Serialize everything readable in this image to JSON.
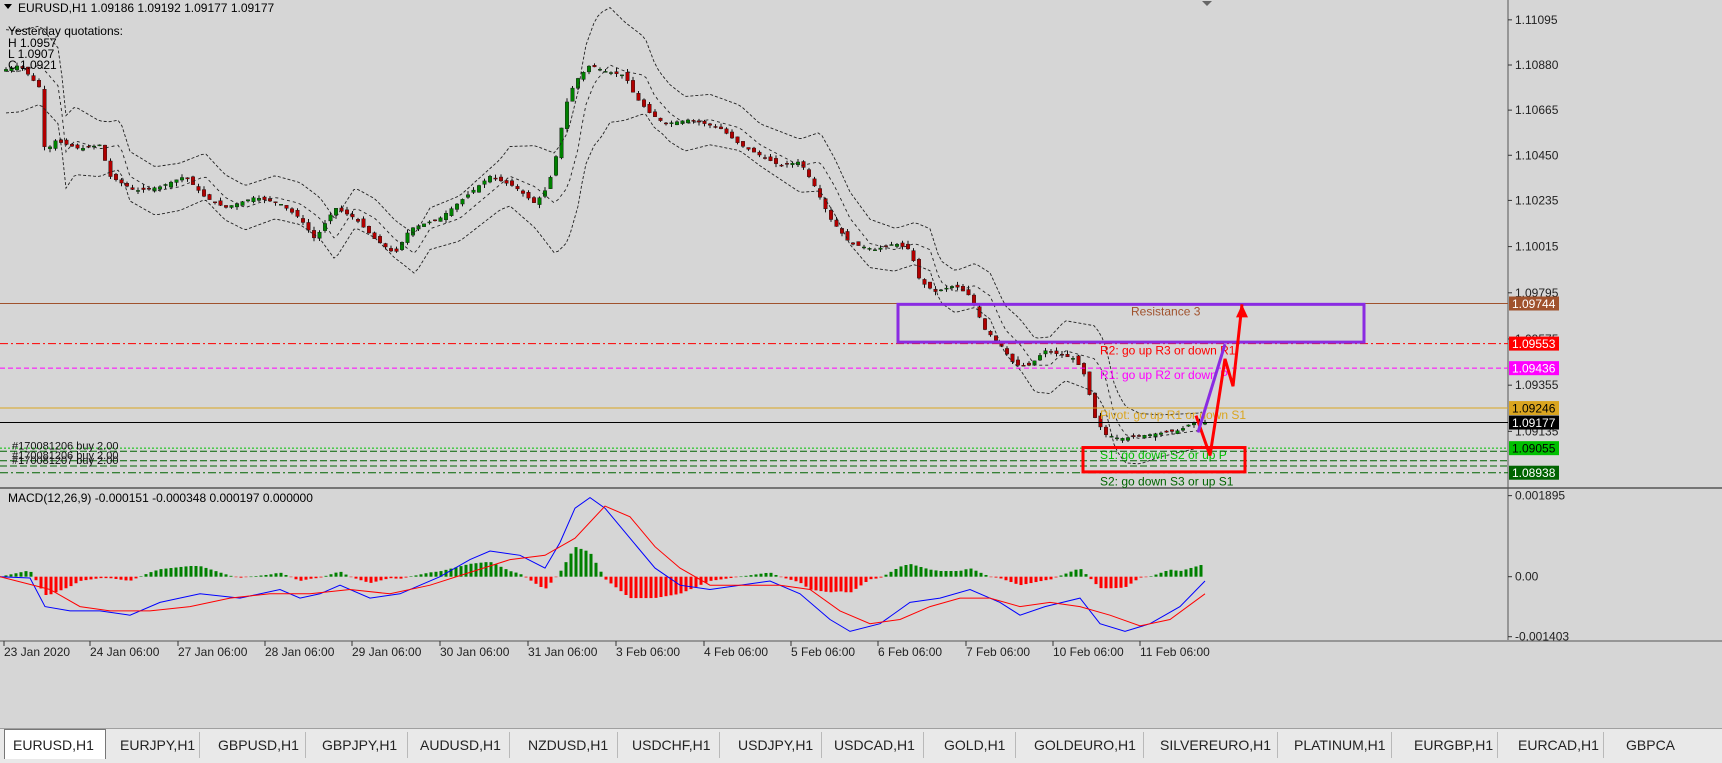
{
  "header": {
    "arrow": "▼",
    "text": "EURUSD,H1  1.09186 1.09192 1.09177 1.09177"
  },
  "quotations": {
    "title": "Yesterday quotations:",
    "lines": [
      "H 1.0957",
      "L 1.0907",
      "C 1.0921"
    ]
  },
  "colors": {
    "bg": "#d6d6d6",
    "bull": "#008000",
    "bear": "#b00000",
    "wick": "#111111",
    "band": "#222222",
    "macd_line": "#0000ff",
    "signal_line": "#ff0000",
    "hist_pos": "#008000",
    "hist_neg": "#ff0000",
    "resistance3": "#a0522d",
    "r2": "#ff0000",
    "r1": "#ff00ff",
    "pivot": "#daa520",
    "s1": "#00c000",
    "s2": "#006400",
    "purple_box": "#8a2be2",
    "red_box": "#ff0000",
    "current": "#000000"
  },
  "price_scale": {
    "ticks": [
      "1.11095",
      "1.10880",
      "1.10665",
      "1.10450",
      "1.10235",
      "1.10015",
      "1.09795",
      "1.09575",
      "1.09355",
      "1.09135"
    ],
    "tick_values": [
      1.11095,
      1.1088,
      1.10665,
      1.1045,
      1.10235,
      1.10015,
      1.09795,
      1.09575,
      1.09355,
      1.09135
    ]
  },
  "price_range": [
    1.0887,
    1.1118
  ],
  "levels": [
    {
      "id": "resistance3",
      "value": 1.09744,
      "label": "1.09744",
      "label_color": "#a0522d",
      "text": "Resistance 3",
      "style": "solid"
    },
    {
      "id": "r2",
      "value": 1.09553,
      "label": "1.09553",
      "label_color": "#ff0000",
      "text": "R2: go up R3 or down R1",
      "style": "dashdot"
    },
    {
      "id": "r1",
      "value": 1.09436,
      "label": "1.09436",
      "label_color": "#ff00ff",
      "text": "R1: go up R2 or down P",
      "style": "dash"
    },
    {
      "id": "pivot",
      "value": 1.09246,
      "label": "1.09246",
      "label_color": "#daa520",
      "text": "Pivot: go up R1 or down S1",
      "style": "solid"
    },
    {
      "id": "current",
      "value": 1.09177,
      "label": "1.09177",
      "label_color": "#000000",
      "text": "",
      "style": "solid"
    },
    {
      "id": "s1",
      "value": 1.09055,
      "label": "1.09055",
      "label_color": "#00c000",
      "text": "S1: go down S2 or up P",
      "style": "dot"
    },
    {
      "id": "s2",
      "value": 1.08938,
      "label": "1.08938",
      "label_color": "#006400",
      "text": "S2: go down S3 or up S1",
      "style": "dashdot"
    }
  ],
  "orders": [
    {
      "text": "#170081206 buy 2.00",
      "value": 1.0904
    },
    {
      "text": "#170081206 buy 2.00",
      "value": 1.08995
    },
    {
      "text": "#170081207 buy 2.00",
      "value": 1.0897
    }
  ],
  "chart_data": {
    "type": "candlestick",
    "symbol": "EURUSD",
    "timeframe": "H1",
    "x_labels": [
      "23 Jan 2020",
      "24 Jan 06:00",
      "27 Jan 06:00",
      "28 Jan 06:00",
      "29 Jan 06:00",
      "30 Jan 06:00",
      "31 Jan 06:00",
      "3 Feb 06:00",
      "4 Feb 06:00",
      "5 Feb 06:00",
      "6 Feb 06:00",
      "7 Feb 06:00",
      "10 Feb 06:00",
      "11 Feb 06:00"
    ],
    "close_path": [
      [
        0,
        1.1085
      ],
      [
        20,
        1.1088
      ],
      [
        40,
        1.1077
      ],
      [
        45,
        1.1046
      ],
      [
        55,
        1.1052
      ],
      [
        80,
        1.1048
      ],
      [
        100,
        1.105
      ],
      [
        110,
        1.1035
      ],
      [
        135,
        1.1028
      ],
      [
        160,
        1.103
      ],
      [
        185,
        1.1035
      ],
      [
        205,
        1.1025
      ],
      [
        225,
        1.102
      ],
      [
        255,
        1.1025
      ],
      [
        280,
        1.1022
      ],
      [
        300,
        1.1015
      ],
      [
        315,
        1.1005
      ],
      [
        335,
        1.102
      ],
      [
        355,
        1.1015
      ],
      [
        375,
        1.1005
      ],
      [
        395,
        1.0998
      ],
      [
        410,
        1.101
      ],
      [
        440,
        1.1015
      ],
      [
        465,
        1.1025
      ],
      [
        490,
        1.1035
      ],
      [
        515,
        1.103
      ],
      [
        535,
        1.1022
      ],
      [
        548,
        1.103
      ],
      [
        558,
        1.1048
      ],
      [
        565,
        1.1068
      ],
      [
        575,
        1.108
      ],
      [
        590,
        1.1088
      ],
      [
        605,
        1.1085
      ],
      [
        625,
        1.1083
      ],
      [
        635,
        1.1073
      ],
      [
        650,
        1.1065
      ],
      [
        665,
        1.106
      ],
      [
        690,
        1.1062
      ],
      [
        720,
        1.1058
      ],
      [
        740,
        1.105
      ],
      [
        760,
        1.1045
      ],
      [
        780,
        1.104
      ],
      [
        800,
        1.1042
      ],
      [
        815,
        1.103
      ],
      [
        830,
        1.1015
      ],
      [
        850,
        1.1003
      ],
      [
        875,
        1.1
      ],
      [
        895,
        1.1003
      ],
      [
        910,
        1.1
      ],
      [
        920,
        1.0985
      ],
      [
        935,
        1.098
      ],
      [
        955,
        1.0983
      ],
      [
        970,
        1.0978
      ],
      [
        985,
        1.0962
      ],
      [
        1000,
        1.0955
      ],
      [
        1015,
        1.0945
      ],
      [
        1030,
        1.0945
      ],
      [
        1045,
        1.0952
      ],
      [
        1060,
        1.095
      ],
      [
        1075,
        1.0948
      ],
      [
        1085,
        1.094
      ],
      [
        1095,
        1.092
      ],
      [
        1105,
        1.0912
      ],
      [
        1120,
        1.091
      ],
      [
        1135,
        1.0911
      ],
      [
        1150,
        1.0912
      ],
      [
        1165,
        1.0913
      ],
      [
        1180,
        1.0914
      ],
      [
        1190,
        1.0917
      ],
      [
        1200,
        1.0918
      ],
      [
        1205,
        1.09177
      ]
    ],
    "bollinger_width": [
      [
        0,
        0.002
      ],
      [
        60,
        0.0018
      ],
      [
        110,
        0.0012
      ],
      [
        300,
        0.001
      ],
      [
        400,
        0.0009
      ],
      [
        500,
        0.0012
      ],
      [
        560,
        0.0025
      ],
      [
        600,
        0.003
      ],
      [
        660,
        0.0014
      ],
      [
        760,
        0.001
      ],
      [
        820,
        0.0014
      ],
      [
        900,
        0.001
      ],
      [
        960,
        0.001
      ],
      [
        1020,
        0.0012
      ],
      [
        1100,
        0.0016
      ],
      [
        1160,
        0.001
      ],
      [
        1205,
        0.0008
      ]
    ],
    "macd": {
      "label": "MACD(12,26,9) -0.000151 -0.000348 0.000197 0.000000",
      "ticks": [
        "0.001895",
        "0.00",
        "-0.001403"
      ],
      "tick_values": [
        0.001895,
        0,
        -0.001403
      ],
      "range": [
        -0.00148,
        0.00205
      ],
      "macd_path": [
        [
          0,
          0.0
        ],
        [
          30,
          -3e-05
        ],
        [
          45,
          -0.0007
        ],
        [
          70,
          -0.0008
        ],
        [
          100,
          -0.0008
        ],
        [
          130,
          -0.0009
        ],
        [
          160,
          -0.0006
        ],
        [
          200,
          -0.0004
        ],
        [
          240,
          -0.0005
        ],
        [
          280,
          -0.0003
        ],
        [
          300,
          -0.0005
        ],
        [
          320,
          -0.0004
        ],
        [
          340,
          -0.0002
        ],
        [
          370,
          -0.0005
        ],
        [
          400,
          -0.0004
        ],
        [
          440,
          0.0
        ],
        [
          470,
          0.0004
        ],
        [
          490,
          0.0006
        ],
        [
          520,
          0.0005
        ],
        [
          545,
          0.0002
        ],
        [
          560,
          0.0008
        ],
        [
          575,
          0.0016
        ],
        [
          590,
          0.00185
        ],
        [
          605,
          0.0016
        ],
        [
          630,
          0.0009
        ],
        [
          655,
          0.0002
        ],
        [
          680,
          -0.0002
        ],
        [
          710,
          -0.0003
        ],
        [
          740,
          -0.0002
        ],
        [
          770,
          -0.0001
        ],
        [
          800,
          -0.0004
        ],
        [
          830,
          -0.001
        ],
        [
          850,
          -0.00128
        ],
        [
          880,
          -0.0011
        ],
        [
          910,
          -0.0006
        ],
        [
          940,
          -0.0005
        ],
        [
          970,
          -0.0003
        ],
        [
          1000,
          -0.0006
        ],
        [
          1020,
          -0.0009
        ],
        [
          1045,
          -0.0007
        ],
        [
          1080,
          -0.0005
        ],
        [
          1100,
          -0.0011
        ],
        [
          1125,
          -0.00128
        ],
        [
          1150,
          -0.0011
        ],
        [
          1180,
          -0.0007
        ],
        [
          1205,
          -0.0001
        ]
      ],
      "signal_path": [
        [
          0,
          0.0
        ],
        [
          50,
          -0.0003
        ],
        [
          80,
          -0.0007
        ],
        [
          110,
          -0.0008
        ],
        [
          150,
          -0.0008
        ],
        [
          190,
          -0.0007
        ],
        [
          230,
          -0.0005
        ],
        [
          270,
          -0.0004
        ],
        [
          310,
          -0.0004
        ],
        [
          350,
          -0.0003
        ],
        [
          390,
          -0.0004
        ],
        [
          430,
          -0.0002
        ],
        [
          470,
          0.0001
        ],
        [
          510,
          0.0004
        ],
        [
          545,
          0.0005
        ],
        [
          575,
          0.0009
        ],
        [
          605,
          0.00165
        ],
        [
          630,
          0.0014
        ],
        [
          655,
          0.0007
        ],
        [
          680,
          0.0002
        ],
        [
          710,
          -0.0002
        ],
        [
          740,
          -0.0002
        ],
        [
          780,
          -0.0002
        ],
        [
          810,
          -0.0003
        ],
        [
          840,
          -0.0008
        ],
        [
          870,
          -0.0011
        ],
        [
          900,
          -0.001
        ],
        [
          930,
          -0.0007
        ],
        [
          960,
          -0.0005
        ],
        [
          990,
          -0.0005
        ],
        [
          1020,
          -0.0007
        ],
        [
          1050,
          -0.0006
        ],
        [
          1080,
          -0.0007
        ],
        [
          1110,
          -0.0009
        ],
        [
          1140,
          -0.00115
        ],
        [
          1170,
          -0.001
        ],
        [
          1205,
          -0.0004
        ]
      ]
    }
  },
  "arrows": {
    "red_path": [
      [
        1196,
        1.0921
      ],
      [
        1210,
        1.0902
      ],
      [
        1225,
        1.0948
      ],
      [
        1233,
        1.0935
      ],
      [
        1242,
        1.0974
      ]
    ],
    "purple_path": [
      [
        1198,
        1.0913
      ],
      [
        1225,
        1.0955
      ]
    ]
  },
  "boxes": {
    "purple": {
      "x0": 898,
      "x1": 1364,
      "y_top": 1.0974,
      "y_bottom": 1.0956
    },
    "red": {
      "x0": 1083,
      "x1": 1245,
      "y_top": 1.09058,
      "y_bottom": 1.08942
    }
  },
  "tabs": [
    {
      "label": "EURUSD,H1",
      "active": true
    },
    {
      "label": "EURJPY,H1",
      "active": false
    },
    {
      "label": "GBPUSD,H1",
      "active": false
    },
    {
      "label": "GBPJPY,H1",
      "active": false
    },
    {
      "label": "AUDUSD,H1",
      "active": false
    },
    {
      "label": "NZDUSD,H1",
      "active": false
    },
    {
      "label": "USDCHF,H1",
      "active": false
    },
    {
      "label": "USDJPY,H1",
      "active": false
    },
    {
      "label": "USDCAD,H1",
      "active": false
    },
    {
      "label": "GOLD,H1",
      "active": false
    },
    {
      "label": "GOLDEURO,H1",
      "active": false
    },
    {
      "label": "SILVEREURO,H1",
      "active": false
    },
    {
      "label": "PLATINUM,H1",
      "active": false
    },
    {
      "label": "EURGBP,H1",
      "active": false
    },
    {
      "label": "EURCAD,H1",
      "active": false
    },
    {
      "label": "GBPCA",
      "active": false
    }
  ]
}
